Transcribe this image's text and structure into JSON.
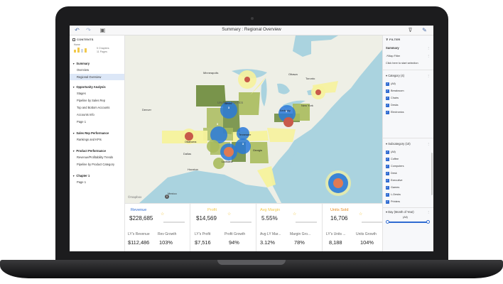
{
  "toolbar": {
    "title": "Summary : Regional Overview",
    "undo_icon": "undo-arrow-icon",
    "redo_icon": "redo-arrow-icon",
    "pages_icon": "pages-icon",
    "filter_icon": "funnel-icon",
    "edit_icon": "pencil-icon"
  },
  "sidebar": {
    "header": "CONTENTS",
    "thumb_label": "Home",
    "chapters_count": "5 Chapters",
    "pages_count": "11 Pages",
    "sections": [
      {
        "label": "Summary",
        "items": [
          "Overview",
          "Regional Overview"
        ]
      },
      {
        "label": "Opportunity Analysis",
        "items": [
          "Stages",
          "Pipeline by Sales Rep",
          "Top and Bottom Accounts",
          "Accounts Info",
          "Page 1"
        ]
      },
      {
        "label": "Sales Rep Performance",
        "items": [
          "Rankings and KPIs"
        ]
      },
      {
        "label": "Product Performance",
        "items": [
          "Revenue/Profitability Trends",
          "Pipeline by Product Category"
        ]
      },
      {
        "label": "Chapter 1",
        "items": [
          "Page 1"
        ]
      }
    ],
    "active_item": "Regional Overview"
  },
  "map": {
    "labels": {
      "united_states": "UNITED STATES",
      "minneapolis": "Minneapolis",
      "ottawa": "Ottawa",
      "toronto": "Toronto",
      "denver": "Denver",
      "dallas": "Dallas",
      "houston": "Houston",
      "new_york": "New York",
      "mexico": "Mexico"
    },
    "state_labels": {
      "tennessee": "Tennessee",
      "georgia": "Georgia",
      "louisiana": "Louisiana",
      "oklahoma": "Oklahoma",
      "illinois": "Illinois",
      "kentucky": "Kentucky"
    },
    "cluster_counts": [
      "3",
      "3",
      "3",
      "3"
    ],
    "attribution": "©mapbox",
    "info_glyph": "i",
    "colors": {
      "water": "#aad3df",
      "land": "#eef0e6",
      "olive": "#6b8a3a",
      "olive_light": "#a9bb5c",
      "yellow": "#f6f29c",
      "blue": "#2979d9",
      "red": "#c85a4a"
    }
  },
  "kpis": [
    {
      "title": "Revenue",
      "color": "#2f6bd1",
      "value": "$228,685",
      "sub1_label": "LY's Revenue",
      "sub1_value": "$112,486",
      "sub2_label": "Rev Growth",
      "sub2_value": "103%"
    },
    {
      "title": "Profit",
      "color": "#f2c94c",
      "value": "$14,569",
      "sub1_label": "LY's Profit",
      "sub1_value": "$7,516",
      "sub2_label": "Profit Growth",
      "sub2_value": "94%"
    },
    {
      "title": "Avg Margin",
      "color": "#f2c94c",
      "value": "5.55%",
      "sub1_label": "Avg LY Mar...",
      "sub1_value": "3.12%",
      "sub2_label": "Margin Gro...",
      "sub2_value": "78%"
    },
    {
      "title": "Units Sold",
      "color": "#e58a1f",
      "value": "16,706",
      "sub1_label": "LY's Units ...",
      "sub1_value": "8,188",
      "sub2_label": "Units Growth",
      "sub2_value": "104%"
    }
  ],
  "kpi_star_glyph": "☆",
  "filter_panel": {
    "header": "FILTER",
    "section": "Summary",
    "map_filter": "Map Filter",
    "hint": "Click here to start selection",
    "category_title": "Category (4)",
    "category_options": [
      "(All)",
      "Breakroom",
      "Chairs",
      "Desks",
      "Electronics"
    ],
    "subcategory_title": "Subcategory (10)",
    "subcategory_options": [
      "(All)",
      "Coffee",
      "Computers",
      "Desk",
      "Executive",
      "Games",
      "L-Desks",
      "Printers"
    ],
    "day_title": "Day (Month of Year)",
    "day_value": "(All)",
    "check_glyph": "✓",
    "menu_glyph": "⋮",
    "toggle_glyph": "▾"
  }
}
